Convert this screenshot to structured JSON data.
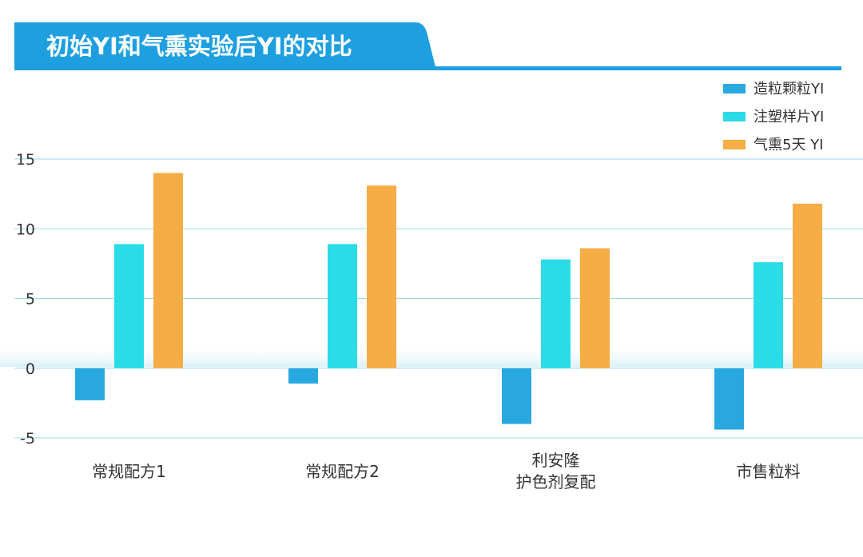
{
  "chart_data": {
    "type": "bar",
    "title": "初始YI和气熏实验后YI的对比",
    "categories": [
      [
        "常规配方1"
      ],
      [
        "常规配方2"
      ],
      [
        "利安隆",
        "护色剂复配"
      ],
      [
        "市售粒料"
      ]
    ],
    "series": [
      {
        "name": "造粒颗粒YI",
        "color": "#29a8e0",
        "values": [
          -2.3,
          -1.1,
          -4.0,
          -4.4
        ]
      },
      {
        "name": "注塑样片YI",
        "color": "#2adce6",
        "values": [
          8.9,
          8.9,
          7.8,
          7.6
        ]
      },
      {
        "name": "气熏5天 YI",
        "color": "#f7ad45",
        "values": [
          14.0,
          13.1,
          8.6,
          11.8
        ]
      }
    ],
    "ylim": [
      -5,
      15
    ],
    "yticks": [
      15,
      10,
      5,
      0,
      -5
    ],
    "grid": true,
    "legend_position": "top-right",
    "colors": {
      "title_bar": "#1e9fe0",
      "gridline": "#9ed9f0",
      "zero_band": "#e6f5fb"
    }
  }
}
